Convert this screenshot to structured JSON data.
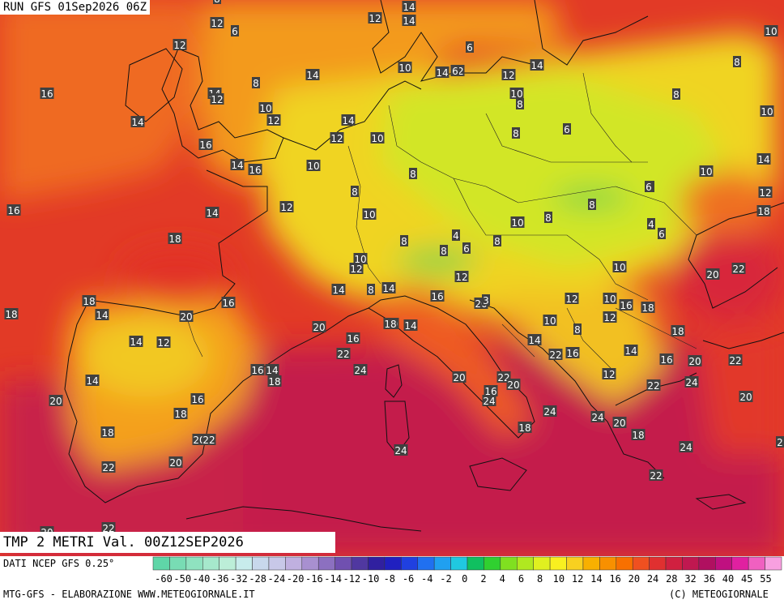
{
  "header": {
    "run_label": "RUN GFS 01Sep2026 06Z"
  },
  "title": {
    "main": "TMP 2 METRI Val. 00Z12SEP2026"
  },
  "footer": {
    "source": "DATI NCEP GFS 0.25°",
    "credit": "MTG-GFS - ELABORAZIONE WWW.METEOGIORNALE.IT",
    "copyright": "(C) METEOGIORNALE"
  },
  "legend": {
    "tick_labels": [
      "-60",
      "-50",
      "-40",
      "-36",
      "-32",
      "-28",
      "-24",
      "-20",
      "-16",
      "-14",
      "-12",
      "-10",
      "-8",
      "-6",
      "-4",
      "-2",
      "0",
      "2",
      "4",
      "6",
      "8",
      "10",
      "12",
      "14",
      "16",
      "20",
      "24",
      "28",
      "32",
      "36",
      "40",
      "45",
      "55"
    ],
    "colors": [
      "#5fd6a8",
      "#78dcb4",
      "#8fe2c0",
      "#a6e8cc",
      "#bceed8",
      "#c8ecec",
      "#c8d8ec",
      "#c8c8e8",
      "#c0b0e0",
      "#a890d0",
      "#8c70c0",
      "#7050b0",
      "#5038a0",
      "#3020a0",
      "#2020c0",
      "#2040e0",
      "#2070f0",
      "#20a0f0",
      "#20c8e0",
      "#10c060",
      "#30d030",
      "#80e020",
      "#b0e820",
      "#e0f020",
      "#f8f020",
      "#f8d020",
      "#f8b000",
      "#f89000",
      "#f87000",
      "#f05020",
      "#e03030",
      "#d02040",
      "#c01850",
      "#b01060",
      "#c01080",
      "#e020a0",
      "#f060c0",
      "#f8a0e0"
    ]
  },
  "map": {
    "sea_colors": {
      "warm_sea": "#c8204a",
      "hot": "#d8283a",
      "orange_red": "#ef5a20",
      "orange": "#f5901c",
      "yellow": "#f0d825",
      "yellow_green": "#cfe830",
      "green": "#56d05a"
    },
    "temperature_labels": [
      {
        "v": "6",
        "city": "near-faroe"
      },
      {
        "v": "14",
        "city": "n-sea"
      },
      {
        "v": "14",
        "city": "skagerrak"
      },
      {
        "v": "12",
        "city": "nw-norway"
      },
      {
        "v": "12",
        "city": "sweden-w"
      },
      {
        "v": "6",
        "city": "scotland"
      },
      {
        "v": "8",
        "city": "scotland-2"
      },
      {
        "v": "12",
        "city": "ireland-n"
      },
      {
        "v": "10",
        "city": "fin"
      },
      {
        "v": "8",
        "city": "baltic-n"
      },
      {
        "v": "16",
        "city": "atlantic-w"
      },
      {
        "v": "14",
        "city": "ireland"
      },
      {
        "v": "14",
        "city": "wales"
      },
      {
        "v": "12",
        "city": "wales-2"
      },
      {
        "v": "8",
        "city": "england-n"
      },
      {
        "v": "14",
        "city": "north-sea"
      },
      {
        "v": "10",
        "city": "denmark"
      },
      {
        "v": "14",
        "city": "dk-2"
      },
      {
        "v": "12",
        "city": "dk-3"
      },
      {
        "v": "6",
        "city": "baltic"
      },
      {
        "v": "12",
        "city": "latvia"
      },
      {
        "v": "14",
        "city": "estonia"
      },
      {
        "v": "8",
        "city": "russia-n"
      },
      {
        "v": "10",
        "city": "england-e"
      },
      {
        "v": "12",
        "city": "england-e2"
      },
      {
        "v": "14",
        "city": "channel-e"
      },
      {
        "v": "12",
        "city": "channel-e2"
      },
      {
        "v": "10",
        "city": "germany-n"
      },
      {
        "v": "10",
        "city": "poland-n"
      },
      {
        "v": "8",
        "city": "poland-n2"
      },
      {
        "v": "8",
        "city": "lithuania"
      },
      {
        "v": "6",
        "city": "belarus"
      },
      {
        "v": "8",
        "city": "russia-w"
      },
      {
        "v": "10",
        "city": "russia-e"
      },
      {
        "v": "16",
        "city": "channel-w"
      },
      {
        "v": "14",
        "city": "brittany"
      },
      {
        "v": "16",
        "city": "brittany-2"
      },
      {
        "v": "10",
        "city": "belgium"
      },
      {
        "v": "8",
        "city": "germany-c"
      },
      {
        "v": "12",
        "city": "ukraine-n"
      },
      {
        "v": "10",
        "city": "ukraine-c"
      },
      {
        "v": "14",
        "city": "ukraine-e"
      },
      {
        "v": "18",
        "city": "ukraine-e2"
      },
      {
        "v": "16",
        "city": "bay-biscay"
      },
      {
        "v": "12",
        "city": "paris"
      },
      {
        "v": "8",
        "city": "lux"
      },
      {
        "v": "18",
        "city": "atlantic"
      },
      {
        "v": "14",
        "city": "france-w"
      },
      {
        "v": "10",
        "city": "france-e"
      },
      {
        "v": "8",
        "city": "slovakia"
      },
      {
        "v": "8",
        "city": "ukraine-w"
      },
      {
        "v": "6",
        "city": "hungary-n"
      },
      {
        "v": "10",
        "city": "hungary"
      },
      {
        "v": "4",
        "city": "romania-n"
      },
      {
        "v": "6",
        "city": "romania-n2"
      },
      {
        "v": "18",
        "city": "biscay"
      },
      {
        "v": "8",
        "city": "swiss"
      },
      {
        "v": "6",
        "city": "alps"
      },
      {
        "v": "4",
        "city": "alps-2"
      },
      {
        "v": "8",
        "city": "austria"
      },
      {
        "v": "8",
        "city": "austria-s"
      },
      {
        "v": "10",
        "city": "alps-w"
      },
      {
        "v": "12",
        "city": "alps-w2"
      },
      {
        "v": "10",
        "city": "romania"
      },
      {
        "v": "20",
        "city": "black-sea"
      },
      {
        "v": "22",
        "city": "black-sea-e"
      },
      {
        "v": "18",
        "city": "galicia"
      },
      {
        "v": "14",
        "city": "spain-nw"
      },
      {
        "v": "20",
        "city": "atlantic-sw"
      },
      {
        "v": "16",
        "city": "france-sw"
      },
      {
        "v": "14",
        "city": "lyon"
      },
      {
        "v": "8",
        "city": "alps-3"
      },
      {
        "v": "14",
        "city": "alps-4"
      },
      {
        "v": "16",
        "city": "po"
      },
      {
        "v": "12",
        "city": "venice"
      },
      {
        "v": "20",
        "city": "adriatic-n"
      },
      {
        "v": "3",
        "city": "istria"
      },
      {
        "v": "12",
        "city": "croatia"
      },
      {
        "v": "10",
        "city": "serbia"
      },
      {
        "v": "16",
        "city": "bulgaria"
      },
      {
        "v": "18",
        "city": "bulgaria-e"
      },
      {
        "v": "20",
        "city": "pyrenees"
      },
      {
        "v": "14",
        "city": "spain-c"
      },
      {
        "v": "12",
        "city": "spain-c2"
      },
      {
        "v": "20",
        "city": "gulf-lion"
      },
      {
        "v": "16",
        "city": "provence"
      },
      {
        "v": "18",
        "city": "genoa"
      },
      {
        "v": "14",
        "city": "tuscany"
      },
      {
        "v": "10",
        "city": "bosnia"
      },
      {
        "v": "8",
        "city": "serbia-s"
      },
      {
        "v": "12",
        "city": "macedonia"
      },
      {
        "v": "18",
        "city": "turkey-nw"
      },
      {
        "v": "14",
        "city": "albania"
      },
      {
        "v": "22",
        "city": "adriatic-s"
      },
      {
        "v": "16",
        "city": "kosovo"
      },
      {
        "v": "14",
        "city": "bulgaria-s"
      },
      {
        "v": "16",
        "city": "thrace"
      },
      {
        "v": "20",
        "city": "marmara"
      },
      {
        "v": "22",
        "city": "turkey-w"
      },
      {
        "v": "16",
        "city": "catalonia"
      },
      {
        "v": "14",
        "city": "catalonia-2"
      },
      {
        "v": "18",
        "city": "catalonia-3"
      },
      {
        "v": "22",
        "city": "balearic-n"
      },
      {
        "v": "24",
        "city": "tyrrhenian-n"
      },
      {
        "v": "14",
        "city": "spain-w"
      },
      {
        "v": "20",
        "city": "rome"
      },
      {
        "v": "22",
        "city": "naples-n"
      },
      {
        "v": "20",
        "city": "naples"
      },
      {
        "v": "16",
        "city": "campania"
      },
      {
        "v": "24",
        "city": "campania-2"
      },
      {
        "v": "12",
        "city": "greece-n"
      },
      {
        "v": "22",
        "city": "aegean-n"
      },
      {
        "v": "24",
        "city": "aegean-ne"
      },
      {
        "v": "20",
        "city": "turkey-sw"
      },
      {
        "v": "20",
        "city": "portugal"
      },
      {
        "v": "16",
        "city": "spain-e"
      },
      {
        "v": "18",
        "city": "valencia"
      },
      {
        "v": "24",
        "city": "ionian-n"
      },
      {
        "v": "18",
        "city": "calabria"
      },
      {
        "v": "24",
        "city": "ionian"
      },
      {
        "v": "20",
        "city": "greece-w"
      },
      {
        "v": "18",
        "city": "greece-c"
      },
      {
        "v": "24",
        "city": "aegean-s"
      },
      {
        "v": "2",
        "city": "turkey-e"
      },
      {
        "v": "18",
        "city": "portugal-s"
      },
      {
        "v": "20",
        "city": "murcia"
      },
      {
        "v": "22",
        "city": "murcia-2"
      },
      {
        "v": "24",
        "city": "sardinia-s"
      },
      {
        "v": "22",
        "city": "andalusia"
      },
      {
        "v": "20",
        "city": "andalusia-2"
      },
      {
        "v": "22",
        "city": "peloponnese"
      },
      {
        "v": "22",
        "city": "morocco"
      },
      {
        "v": "20",
        "city": "morocco-w"
      }
    ]
  }
}
